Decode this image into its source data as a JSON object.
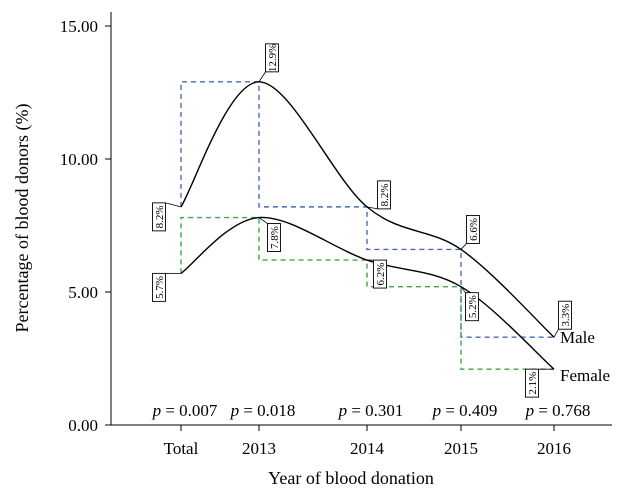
{
  "chart_data": {
    "type": "line",
    "xlabel": "Year of blood donation",
    "ylabel": "Percentage of blood donors (%)",
    "ylim": [
      0,
      15
    ],
    "y_ticks": [
      "0.00",
      "5.00",
      "10.00",
      "15.00"
    ],
    "categories": [
      "Total",
      "2013",
      "2014",
      "2015",
      "2016"
    ],
    "series": [
      {
        "name": "Male",
        "values": [
          8.2,
          12.9,
          8.2,
          6.6,
          3.3
        ],
        "labels": [
          "8.2%",
          "12.9%",
          "8.2%",
          "6.6%",
          "3.3%"
        ],
        "step_color": "#4a6bb5"
      },
      {
        "name": "Female",
        "values": [
          5.7,
          7.8,
          6.2,
          5.2,
          2.1
        ],
        "labels": [
          "5.7%",
          "7.8%",
          "6.2%",
          "5.2%",
          "2.1%"
        ],
        "step_color": "#3aa845"
      }
    ],
    "p_values": [
      "p = 0.007",
      "p = 0.018",
      "p = 0.301",
      "p = 0.409",
      "p = 0.768"
    ],
    "grid": false,
    "legend": "none"
  }
}
